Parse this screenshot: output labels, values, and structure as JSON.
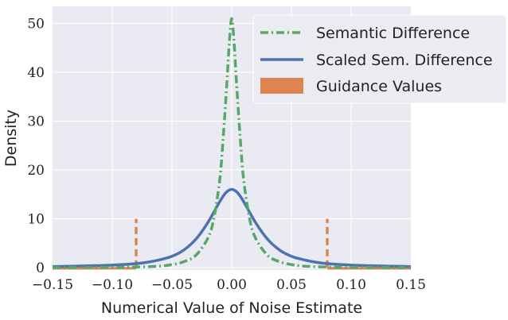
{
  "chart_data": {
    "type": "line",
    "xlabel": "Numerical Value of Noise Estimate",
    "ylabel": "Density",
    "xlim": [
      -0.15,
      0.15
    ],
    "ylim": [
      -0.5,
      53.5
    ],
    "x_ticks": [
      -0.15,
      -0.1,
      -0.05,
      0.0,
      0.05,
      0.1,
      0.15
    ],
    "x_tick_labels": [
      "−0.15",
      "−0.10",
      "−0.05",
      "0.00",
      "0.05",
      "0.10",
      "0.15"
    ],
    "y_ticks": [
      0,
      10,
      20,
      30,
      40,
      50
    ],
    "y_tick_labels": [
      "0",
      "10",
      "20",
      "30",
      "40",
      "50"
    ],
    "grid": true,
    "legend_position": "top-right",
    "series": [
      {
        "name": "Semantic Difference",
        "style": "dashdot",
        "color": "#55a868",
        "x": [
          -0.15,
          -0.1,
          -0.08,
          -0.06,
          -0.05,
          -0.04,
          -0.03,
          -0.02,
          -0.015,
          -0.01,
          -0.007,
          -0.004,
          -0.002,
          0.0,
          0.002,
          0.004,
          0.007,
          0.01,
          0.015,
          0.02,
          0.03,
          0.04,
          0.05,
          0.06,
          0.08,
          0.1,
          0.15
        ],
        "y": [
          0.0,
          0.05,
          0.1,
          0.3,
          0.6,
          1.2,
          2.5,
          6.0,
          10.0,
          18.0,
          27.0,
          38.0,
          46.0,
          51.0,
          46.0,
          38.0,
          27.0,
          18.0,
          10.0,
          6.0,
          2.5,
          1.2,
          0.6,
          0.3,
          0.1,
          0.05,
          0.0
        ]
      },
      {
        "name": "Scaled Sem. Difference",
        "style": "solid",
        "color": "#4c72b0",
        "x": [
          -0.15,
          -0.12,
          -0.1,
          -0.08,
          -0.07,
          -0.06,
          -0.05,
          -0.04,
          -0.03,
          -0.02,
          -0.01,
          -0.005,
          0.0,
          0.005,
          0.01,
          0.02,
          0.03,
          0.04,
          0.05,
          0.06,
          0.07,
          0.08,
          0.1,
          0.12,
          0.15
        ],
        "y": [
          0.2,
          0.35,
          0.5,
          0.8,
          1.1,
          1.6,
          2.3,
          3.6,
          5.8,
          9.2,
          13.5,
          15.3,
          16.0,
          15.3,
          13.5,
          9.2,
          5.8,
          3.6,
          2.3,
          1.6,
          1.1,
          0.8,
          0.5,
          0.35,
          0.2
        ]
      },
      {
        "name": "Guidance Values",
        "style": "bars",
        "color": "#dd8452",
        "x": [
          -0.08,
          0.08
        ],
        "y": [
          10,
          10
        ]
      }
    ]
  }
}
